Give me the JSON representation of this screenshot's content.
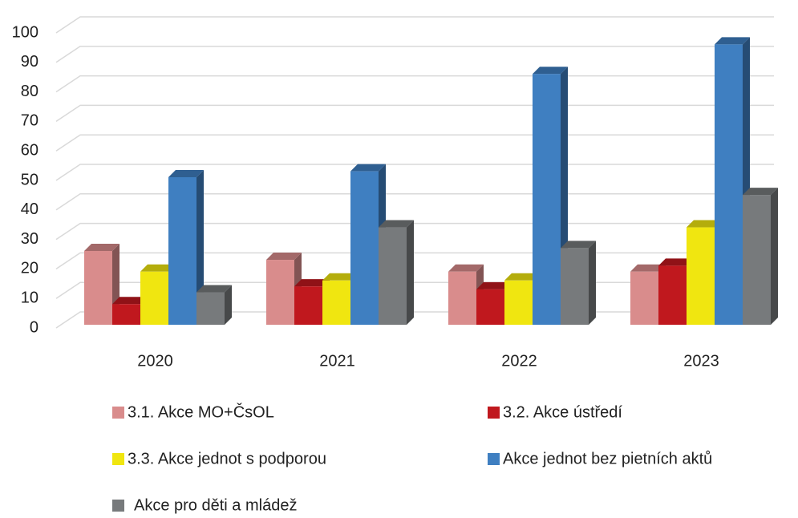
{
  "chart_data": {
    "type": "bar3d",
    "categories": [
      "2020",
      "2021",
      "2022",
      "2023"
    ],
    "series": [
      {
        "name": "3.1. Akce MO+ČsOL",
        "color": "#d98c8c",
        "values": [
          25,
          22,
          18,
          18
        ]
      },
      {
        "name": "3.2. Akce ústředí",
        "color": "#c0181e",
        "values": [
          7,
          13,
          12,
          20
        ]
      },
      {
        "name": "3.3. Akce jednot s podporou",
        "color": "#f0e610",
        "values": [
          18,
          15,
          15,
          33
        ]
      },
      {
        "name": "Akce jednot bez pietních aktů",
        "color": "#3f7fc1",
        "values": [
          50,
          52,
          85,
          95
        ]
      },
      {
        "name": "Akce pro děti a mládež",
        "color": "#777a7c",
        "values": [
          11,
          33,
          26,
          44
        ]
      }
    ],
    "ylim": [
      0,
      100
    ],
    "yticks": [
      0,
      10,
      20,
      30,
      40,
      50,
      60,
      70,
      80,
      90,
      100
    ],
    "grid": true,
    "legend": "bottom"
  }
}
